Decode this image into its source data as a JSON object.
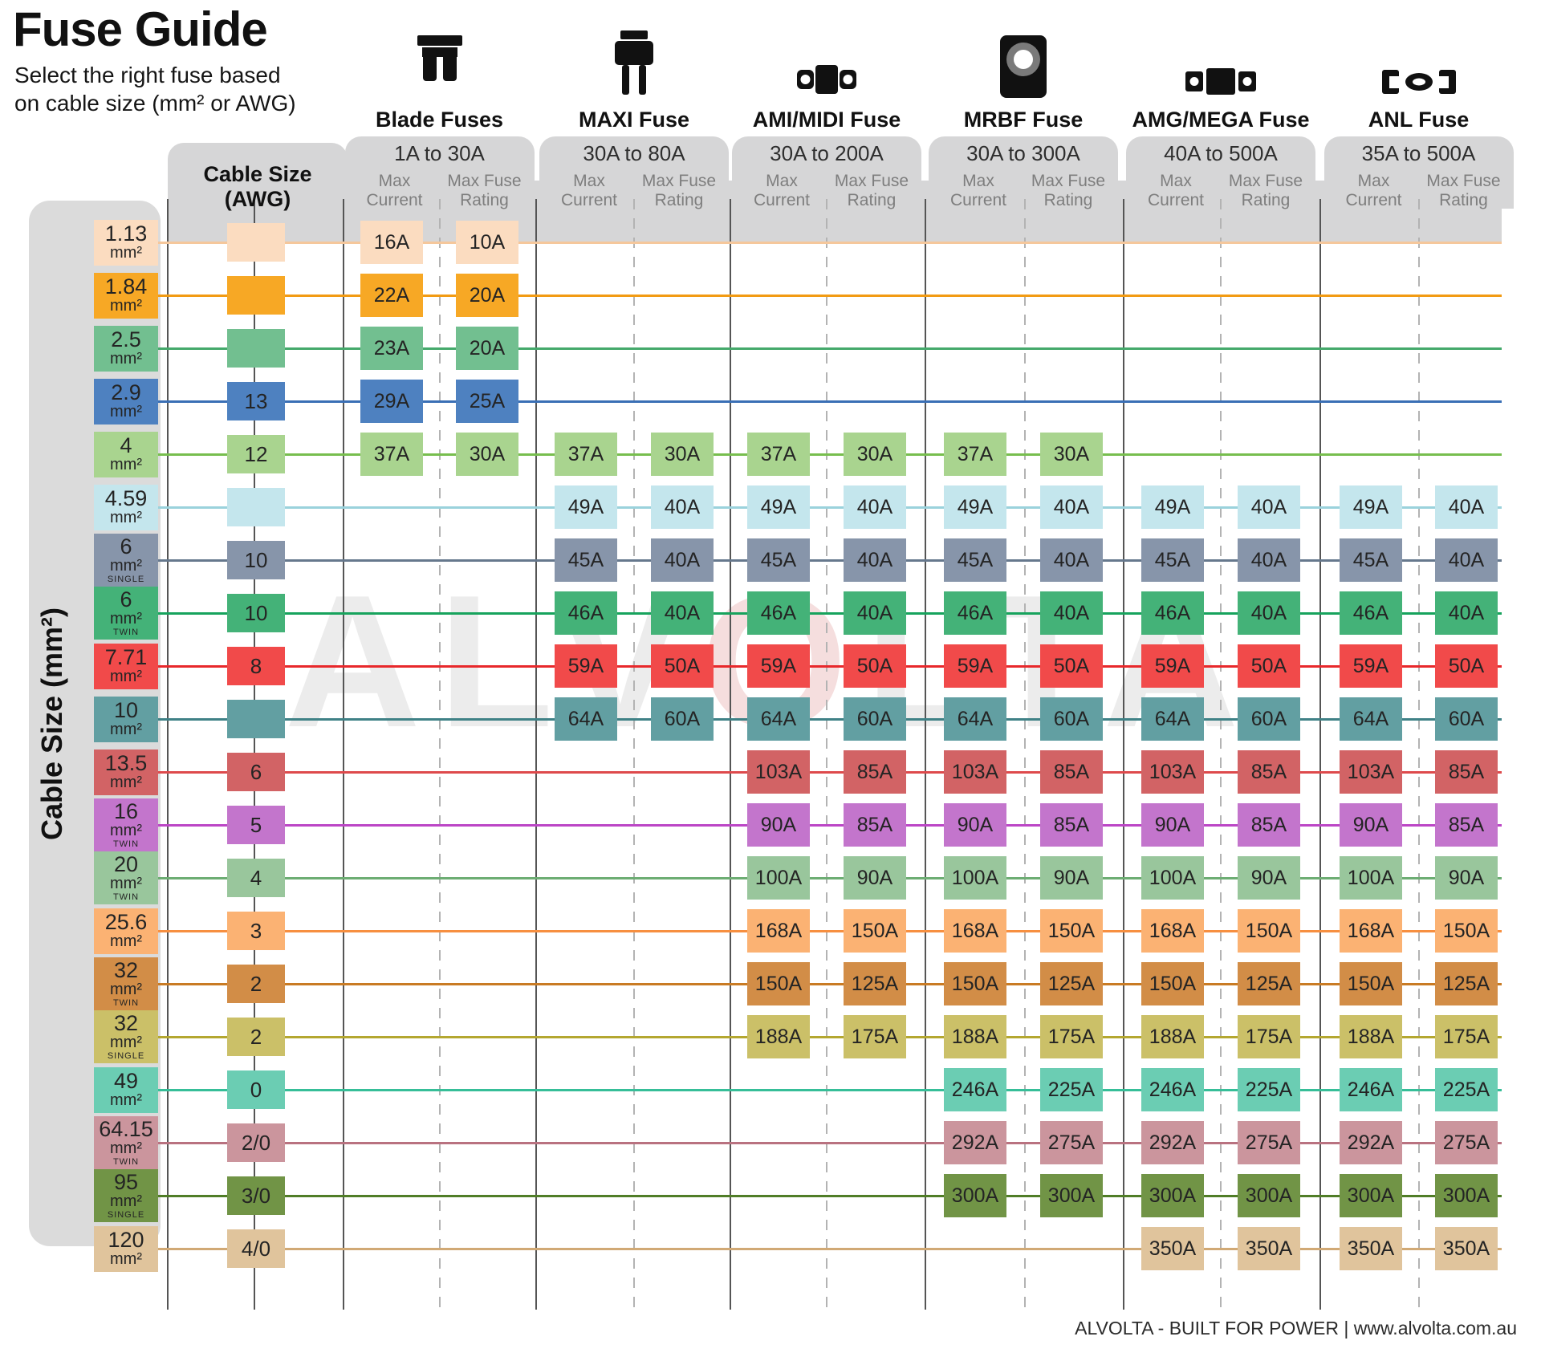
{
  "chart_data": {
    "type": "table",
    "title": "Fuse Guide",
    "subtitle": [
      "Select the right fuse based",
      "on cable size (mm² or AWG)"
    ],
    "row_axis_label": "Cable Size (mm²)",
    "awg_column_header": "Cable Size (AWG)",
    "subcolumns": [
      "Max Current",
      "Max Fuse Rating"
    ],
    "fuse_types": [
      {
        "name": "Blade Fuses",
        "range": "1A to 30A",
        "icon": "blade-fuse-icon"
      },
      {
        "name": "MAXI Fuse",
        "range": "30A to 80A",
        "icon": "maxi-fuse-icon"
      },
      {
        "name": "AMI/MIDI Fuse",
        "range": "30A to 200A",
        "icon": "ami-midi-fuse-icon"
      },
      {
        "name": "MRBF Fuse",
        "range": "30A to 300A",
        "icon": "mrbf-fuse-icon"
      },
      {
        "name": "AMG/MEGA Fuse",
        "range": "40A to 500A",
        "icon": "amg-mega-fuse-icon"
      },
      {
        "name": "ANL Fuse",
        "range": "35A to 500A",
        "icon": "anl-fuse-icon"
      }
    ],
    "rows": [
      {
        "mm2": "1.13",
        "unit": "mm²",
        "variant": "",
        "awg": "",
        "chip_color": "#FBDCC0",
        "line_color": "#F5C79B",
        "cells": [
          [
            "16A",
            "10A"
          ],
          null,
          null,
          null,
          null,
          null
        ]
      },
      {
        "mm2": "1.84",
        "unit": "mm²",
        "variant": "",
        "awg": "",
        "chip_color": "#F7A825",
        "line_color": "#F29B13",
        "cells": [
          [
            "22A",
            "20A"
          ],
          null,
          null,
          null,
          null,
          null
        ]
      },
      {
        "mm2": "2.5",
        "unit": "mm²",
        "variant": "",
        "awg": "",
        "chip_color": "#72BF90",
        "line_color": "#45A96B",
        "cells": [
          [
            "23A",
            "20A"
          ],
          null,
          null,
          null,
          null,
          null
        ]
      },
      {
        "mm2": "2.9",
        "unit": "mm²",
        "variant": "",
        "awg": "13",
        "chip_color": "#4E81C0",
        "line_color": "#3A6FB5",
        "cells": [
          [
            "29A",
            "25A"
          ],
          null,
          null,
          null,
          null,
          null
        ]
      },
      {
        "mm2": "4",
        "unit": "mm²",
        "variant": "",
        "awg": "12",
        "chip_color": "#A9D48F",
        "line_color": "#77BE4E",
        "cells": [
          [
            "37A",
            "30A"
          ],
          [
            "37A",
            "30A"
          ],
          [
            "37A",
            "30A"
          ],
          [
            "37A",
            "30A"
          ],
          null,
          null
        ]
      },
      {
        "mm2": "4.59",
        "unit": "mm²",
        "variant": "",
        "awg": "",
        "chip_color": "#C4E6ED",
        "line_color": "#9AD2DC",
        "cells": [
          null,
          [
            "49A",
            "40A"
          ],
          [
            "49A",
            "40A"
          ],
          [
            "49A",
            "40A"
          ],
          [
            "49A",
            "40A"
          ],
          [
            "49A",
            "40A"
          ]
        ]
      },
      {
        "mm2": "6",
        "unit": "mm²",
        "variant": "SINGLE",
        "awg": "10",
        "chip_color": "#8795AA",
        "line_color": "#66788D",
        "cells": [
          null,
          [
            "45A",
            "40A"
          ],
          [
            "45A",
            "40A"
          ],
          [
            "45A",
            "40A"
          ],
          [
            "45A",
            "40A"
          ],
          [
            "45A",
            "40A"
          ]
        ]
      },
      {
        "mm2": "6",
        "unit": "mm²",
        "variant": "TWIN",
        "awg": "10",
        "chip_color": "#44B278",
        "line_color": "#17A35D",
        "cells": [
          null,
          [
            "46A",
            "40A"
          ],
          [
            "46A",
            "40A"
          ],
          [
            "46A",
            "40A"
          ],
          [
            "46A",
            "40A"
          ],
          [
            "46A",
            "40A"
          ]
        ]
      },
      {
        "mm2": "7.71",
        "unit": "mm²",
        "variant": "",
        "awg": "8",
        "chip_color": "#F14A4A",
        "line_color": "#E8282B",
        "cells": [
          null,
          [
            "59A",
            "50A"
          ],
          [
            "59A",
            "50A"
          ],
          [
            "59A",
            "50A"
          ],
          [
            "59A",
            "50A"
          ],
          [
            "59A",
            "50A"
          ]
        ]
      },
      {
        "mm2": "10",
        "unit": "mm²",
        "variant": "",
        "awg": "",
        "chip_color": "#629FA2",
        "line_color": "#3F8186",
        "cells": [
          null,
          [
            "64A",
            "60A"
          ],
          [
            "64A",
            "60A"
          ],
          [
            "64A",
            "60A"
          ],
          [
            "64A",
            "60A"
          ],
          [
            "64A",
            "60A"
          ]
        ]
      },
      {
        "mm2": "13.5",
        "unit": "mm²",
        "variant": "",
        "awg": "6",
        "chip_color": "#D26365",
        "line_color": "#DE4A4C",
        "cells": [
          null,
          null,
          [
            "103A",
            "85A"
          ],
          [
            "103A",
            "85A"
          ],
          [
            "103A",
            "85A"
          ],
          [
            "103A",
            "85A"
          ]
        ]
      },
      {
        "mm2": "16",
        "unit": "mm²",
        "variant": "TWIN",
        "awg": "5",
        "chip_color": "#C375CC",
        "line_color": "#BC46C6",
        "cells": [
          null,
          null,
          [
            "90A",
            "85A"
          ],
          [
            "90A",
            "85A"
          ],
          [
            "90A",
            "85A"
          ],
          [
            "90A",
            "85A"
          ]
        ]
      },
      {
        "mm2": "20",
        "unit": "mm²",
        "variant": "TWIN",
        "awg": "4",
        "chip_color": "#99C69C",
        "line_color": "#6DAD73",
        "cells": [
          null,
          null,
          [
            "100A",
            "90A"
          ],
          [
            "100A",
            "90A"
          ],
          [
            "100A",
            "90A"
          ],
          [
            "100A",
            "90A"
          ]
        ]
      },
      {
        "mm2": "25.6",
        "unit": "mm²",
        "variant": "",
        "awg": "3",
        "chip_color": "#FBB273",
        "line_color": "#F78F40",
        "cells": [
          null,
          null,
          [
            "168A",
            "150A"
          ],
          [
            "168A",
            "150A"
          ],
          [
            "168A",
            "150A"
          ],
          [
            "168A",
            "150A"
          ]
        ]
      },
      {
        "mm2": "32",
        "unit": "mm²",
        "variant": "TWIN",
        "awg": "2",
        "chip_color": "#D28D47",
        "line_color": "#C97B24",
        "cells": [
          null,
          null,
          [
            "150A",
            "125A"
          ],
          [
            "150A",
            "125A"
          ],
          [
            "150A",
            "125A"
          ],
          [
            "150A",
            "125A"
          ]
        ]
      },
      {
        "mm2": "32",
        "unit": "mm²",
        "variant": "SINGLE",
        "awg": "2",
        "chip_color": "#CBC068",
        "line_color": "#B4A730",
        "cells": [
          null,
          null,
          [
            "188A",
            "175A"
          ],
          [
            "188A",
            "175A"
          ],
          [
            "188A",
            "175A"
          ],
          [
            "188A",
            "175A"
          ]
        ]
      },
      {
        "mm2": "49",
        "unit": "mm²",
        "variant": "",
        "awg": "0",
        "chip_color": "#6BCDB3",
        "line_color": "#36BE98",
        "cells": [
          null,
          null,
          null,
          [
            "246A",
            "225A"
          ],
          [
            "246A",
            "225A"
          ],
          [
            "246A",
            "225A"
          ]
        ]
      },
      {
        "mm2": "64.15",
        "unit": "mm²",
        "variant": "TWIN",
        "awg": "2/0",
        "chip_color": "#CB959D",
        "line_color": "#B97280",
        "cells": [
          null,
          null,
          null,
          [
            "292A",
            "275A"
          ],
          [
            "292A",
            "275A"
          ],
          [
            "292A",
            "275A"
          ]
        ]
      },
      {
        "mm2": "95",
        "unit": "mm²",
        "variant": "SINGLE",
        "awg": "3/0",
        "chip_color": "#719446",
        "line_color": "#507D27",
        "cells": [
          null,
          null,
          null,
          [
            "300A",
            "300A"
          ],
          [
            "300A",
            "300A"
          ],
          [
            "300A",
            "300A"
          ]
        ]
      },
      {
        "mm2": "120",
        "unit": "mm²",
        "variant": "",
        "awg": "4/0",
        "chip_color": "#E0C49C",
        "line_color": "#D1A975",
        "cells": [
          null,
          null,
          null,
          null,
          [
            "350A",
            "350A"
          ],
          [
            "350A",
            "350A"
          ]
        ]
      }
    ],
    "watermark_parts": [
      "ALV",
      "O",
      "LTA"
    ],
    "footer": "ALVOLTA - BUILT FOR POWER | www.alvolta.com.au"
  }
}
